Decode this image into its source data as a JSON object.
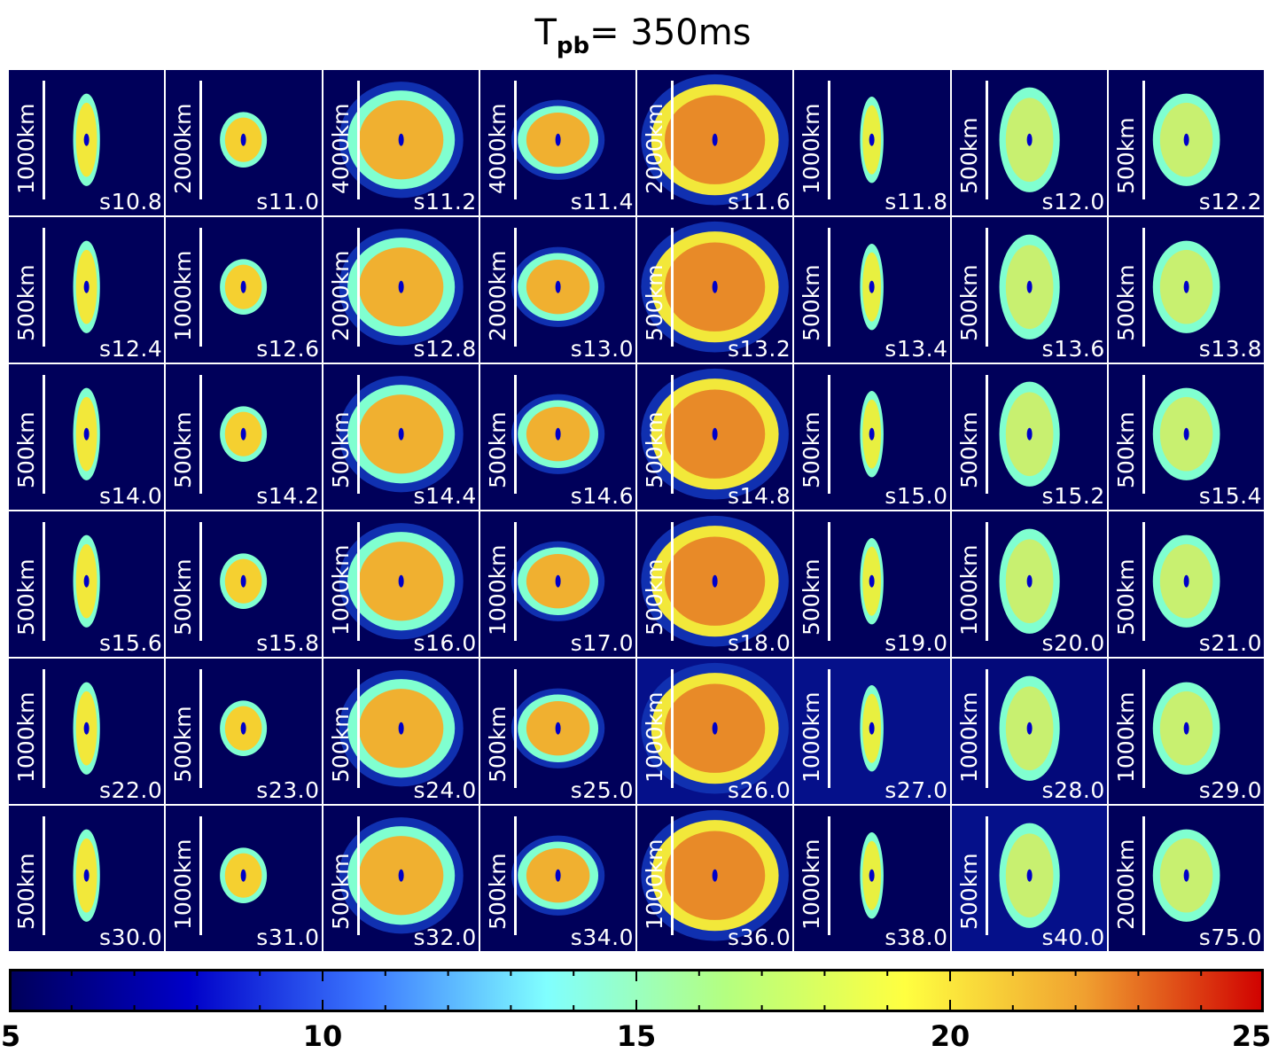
{
  "title": {
    "main": "T",
    "sub": "pb",
    "rest": "= 350ms"
  },
  "panels": [
    {
      "model": "s10.8",
      "scale": "1000km",
      "bg": "#00005a"
    },
    {
      "model": "s11.0",
      "scale": "2000km",
      "bg": "#00005a"
    },
    {
      "model": "s11.2",
      "scale": "4000km",
      "bg": "#00005a"
    },
    {
      "model": "s11.4",
      "scale": "4000km",
      "bg": "#00005a"
    },
    {
      "model": "s11.6",
      "scale": "2000km",
      "bg": "#00005a"
    },
    {
      "model": "s11.8",
      "scale": "1000km",
      "bg": "#00005a"
    },
    {
      "model": "s12.0",
      "scale": "500km",
      "bg": "#00005a"
    },
    {
      "model": "s12.2",
      "scale": "500km",
      "bg": "#00005a"
    },
    {
      "model": "s12.4",
      "scale": "500km",
      "bg": "#00005a"
    },
    {
      "model": "s12.6",
      "scale": "1000km",
      "bg": "#00005a"
    },
    {
      "model": "s12.8",
      "scale": "2000km",
      "bg": "#00005a"
    },
    {
      "model": "s13.0",
      "scale": "2000km",
      "bg": "#00005a"
    },
    {
      "model": "s13.2",
      "scale": "500km",
      "bg": "#00005a"
    },
    {
      "model": "s13.4",
      "scale": "500km",
      "bg": "#00005a"
    },
    {
      "model": "s13.6",
      "scale": "500km",
      "bg": "#00005a"
    },
    {
      "model": "s13.8",
      "scale": "500km",
      "bg": "#00005a"
    },
    {
      "model": "s14.0",
      "scale": "500km",
      "bg": "#00005a"
    },
    {
      "model": "s14.2",
      "scale": "500km",
      "bg": "#00005a"
    },
    {
      "model": "s14.4",
      "scale": "500km",
      "bg": "#00005a"
    },
    {
      "model": "s14.6",
      "scale": "500km",
      "bg": "#00005a"
    },
    {
      "model": "s14.8",
      "scale": "500km",
      "bg": "#00005a"
    },
    {
      "model": "s15.0",
      "scale": "500km",
      "bg": "#00005a"
    },
    {
      "model": "s15.2",
      "scale": "500km",
      "bg": "#00005a"
    },
    {
      "model": "s15.4",
      "scale": "500km",
      "bg": "#00005a"
    },
    {
      "model": "s15.6",
      "scale": "500km",
      "bg": "#00005a"
    },
    {
      "model": "s15.8",
      "scale": "500km",
      "bg": "#00005a"
    },
    {
      "model": "s16.0",
      "scale": "1000km",
      "bg": "#00005a"
    },
    {
      "model": "s17.0",
      "scale": "1000km",
      "bg": "#00005a"
    },
    {
      "model": "s18.0",
      "scale": "500km",
      "bg": "#00005a"
    },
    {
      "model": "s19.0",
      "scale": "500km",
      "bg": "#00005a"
    },
    {
      "model": "s20.0",
      "scale": "1000km",
      "bg": "#00005a"
    },
    {
      "model": "s21.0",
      "scale": "500km",
      "bg": "#00005a"
    },
    {
      "model": "s22.0",
      "scale": "1000km",
      "bg": "#00005a"
    },
    {
      "model": "s23.0",
      "scale": "500km",
      "bg": "#00005a"
    },
    {
      "model": "s24.0",
      "scale": "500km",
      "bg": "#00005a"
    },
    {
      "model": "s25.0",
      "scale": "500km",
      "bg": "#00005a"
    },
    {
      "model": "s26.0",
      "scale": "1000km",
      "bg": "#05108a"
    },
    {
      "model": "s27.0",
      "scale": "1000km",
      "bg": "#05108a"
    },
    {
      "model": "s28.0",
      "scale": "1000km",
      "bg": "#03097a"
    },
    {
      "model": "s29.0",
      "scale": "1000km",
      "bg": "#00005a"
    },
    {
      "model": "s30.0",
      "scale": "500km",
      "bg": "#00005a"
    },
    {
      "model": "s31.0",
      "scale": "1000km",
      "bg": "#00005a"
    },
    {
      "model": "s32.0",
      "scale": "500km",
      "bg": "#00005a"
    },
    {
      "model": "s34.0",
      "scale": "500km",
      "bg": "#00005a"
    },
    {
      "model": "s36.0",
      "scale": "1000km",
      "bg": "#00005a"
    },
    {
      "model": "s38.0",
      "scale": "1000km",
      "bg": "#00005a"
    },
    {
      "model": "s40.0",
      "scale": "500km",
      "bg": "#05108a"
    },
    {
      "model": "s75.0",
      "scale": "2000km",
      "bg": "#00005a"
    }
  ],
  "colorbar": {
    "min": 5,
    "max": 25,
    "labels": [
      "5",
      "10",
      "15",
      "20",
      "25"
    ],
    "label_values": [
      5,
      10,
      15,
      20,
      25
    ],
    "colors": [
      "#00005a",
      "#0000c8",
      "#3c78ff",
      "#80ffff",
      "#b4ff80",
      "#ffff40",
      "#f0a030",
      "#d00000"
    ]
  }
}
